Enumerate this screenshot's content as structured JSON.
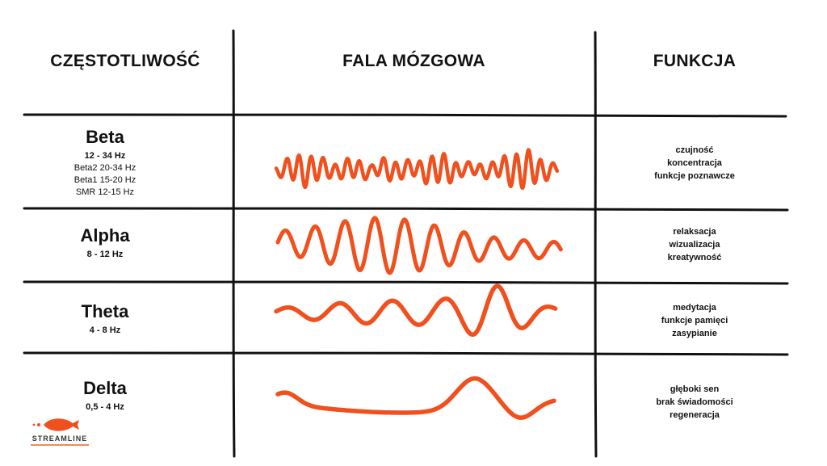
{
  "headers": {
    "frequency": "CZĘSTOTLIWOŚĆ",
    "wave": "FALA MÓZGOWA",
    "function": "FUNKCJA"
  },
  "rows": [
    {
      "name": "Beta",
      "range": "12 - 34 Hz",
      "sub": [
        "Beta2 20-34 Hz",
        "Beta1 15-20 Hz",
        "SMR 12-15 Hz"
      ],
      "functions": [
        "czujność",
        "koncentracja",
        "funkcje poznawcze"
      ]
    },
    {
      "name": "Alpha",
      "range": "8 - 12 Hz",
      "sub": [],
      "functions": [
        "relaksacja",
        "wizualizacja",
        "kreatywność"
      ]
    },
    {
      "name": "Theta",
      "range": "4 - 8 Hz",
      "sub": [],
      "functions": [
        "medytacja",
        "funkcje pamięci",
        "zasypianie"
      ]
    },
    {
      "name": "Delta",
      "range": "0,5 - 4 Hz",
      "sub": [],
      "functions": [
        "głęboki sen",
        "brak świadomości",
        "regeneracja"
      ]
    }
  ],
  "logo": {
    "text": "STREAMLINE"
  },
  "colors": {
    "wave": "#f0501e",
    "lines": "#111111",
    "logo_accent": "#f0501e"
  }
}
